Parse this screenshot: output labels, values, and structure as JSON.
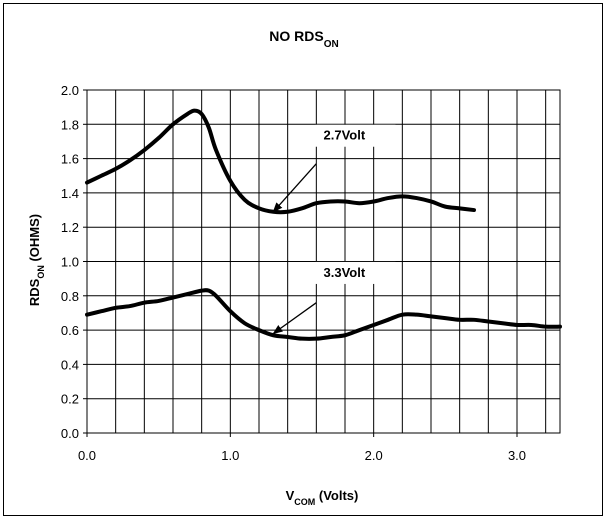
{
  "chart_data": {
    "type": "line",
    "title": {
      "main": "NO RDS",
      "sub": "ON"
    },
    "xlabel": {
      "main": "V",
      "sub": "COM",
      "rest": " (Volts)"
    },
    "ylabel": {
      "main": "RDS",
      "sub": "ON",
      "rest": " (OHMS)"
    },
    "xlim": [
      0.0,
      3.3
    ],
    "ylim": [
      0.0,
      2.0
    ],
    "x_ticks": [
      "0.0",
      "1.0",
      "2.0",
      "3.0"
    ],
    "y_ticks": [
      "0.0",
      "0.2",
      "0.4",
      "0.6",
      "0.8",
      "1.0",
      "1.2",
      "1.4",
      "1.6",
      "1.8",
      "2.0"
    ],
    "grid": true,
    "legend": "none",
    "series": [
      {
        "name": "2.7Volt",
        "color": "#000000",
        "x": [
          0.0,
          0.1,
          0.2,
          0.3,
          0.4,
          0.5,
          0.6,
          0.7,
          0.75,
          0.8,
          0.85,
          0.9,
          1.0,
          1.1,
          1.2,
          1.3,
          1.4,
          1.5,
          1.6,
          1.7,
          1.8,
          1.9,
          2.0,
          2.1,
          2.2,
          2.3,
          2.4,
          2.5,
          2.6,
          2.7
        ],
        "y": [
          1.46,
          1.5,
          1.54,
          1.59,
          1.65,
          1.72,
          1.8,
          1.86,
          1.88,
          1.86,
          1.78,
          1.65,
          1.47,
          1.36,
          1.31,
          1.29,
          1.29,
          1.31,
          1.34,
          1.35,
          1.35,
          1.34,
          1.35,
          1.37,
          1.38,
          1.37,
          1.35,
          1.32,
          1.31,
          1.3
        ]
      },
      {
        "name": "3.3Volt",
        "color": "#000000",
        "x": [
          0.0,
          0.1,
          0.2,
          0.3,
          0.4,
          0.5,
          0.6,
          0.7,
          0.8,
          0.85,
          0.9,
          1.0,
          1.1,
          1.2,
          1.3,
          1.4,
          1.5,
          1.6,
          1.7,
          1.8,
          1.9,
          2.0,
          2.1,
          2.2,
          2.3,
          2.4,
          2.5,
          2.6,
          2.7,
          2.8,
          2.9,
          3.0,
          3.1,
          3.2,
          3.3
        ],
        "y": [
          0.69,
          0.71,
          0.73,
          0.74,
          0.76,
          0.77,
          0.79,
          0.81,
          0.83,
          0.83,
          0.8,
          0.71,
          0.64,
          0.6,
          0.57,
          0.56,
          0.55,
          0.55,
          0.56,
          0.57,
          0.6,
          0.63,
          0.66,
          0.69,
          0.69,
          0.68,
          0.67,
          0.66,
          0.66,
          0.65,
          0.64,
          0.63,
          0.63,
          0.62,
          0.62
        ]
      }
    ],
    "annotations": [
      {
        "text": "2.7Volt",
        "label_at": [
          1.65,
          1.71
        ],
        "arrow_from": [
          1.6,
          1.57
        ],
        "arrow_to": [
          1.3,
          1.29
        ]
      },
      {
        "text": "3.3Volt",
        "label_at": [
          1.65,
          0.91
        ],
        "arrow_from": [
          1.6,
          0.76
        ],
        "arrow_to": [
          1.3,
          0.58
        ]
      }
    ]
  }
}
